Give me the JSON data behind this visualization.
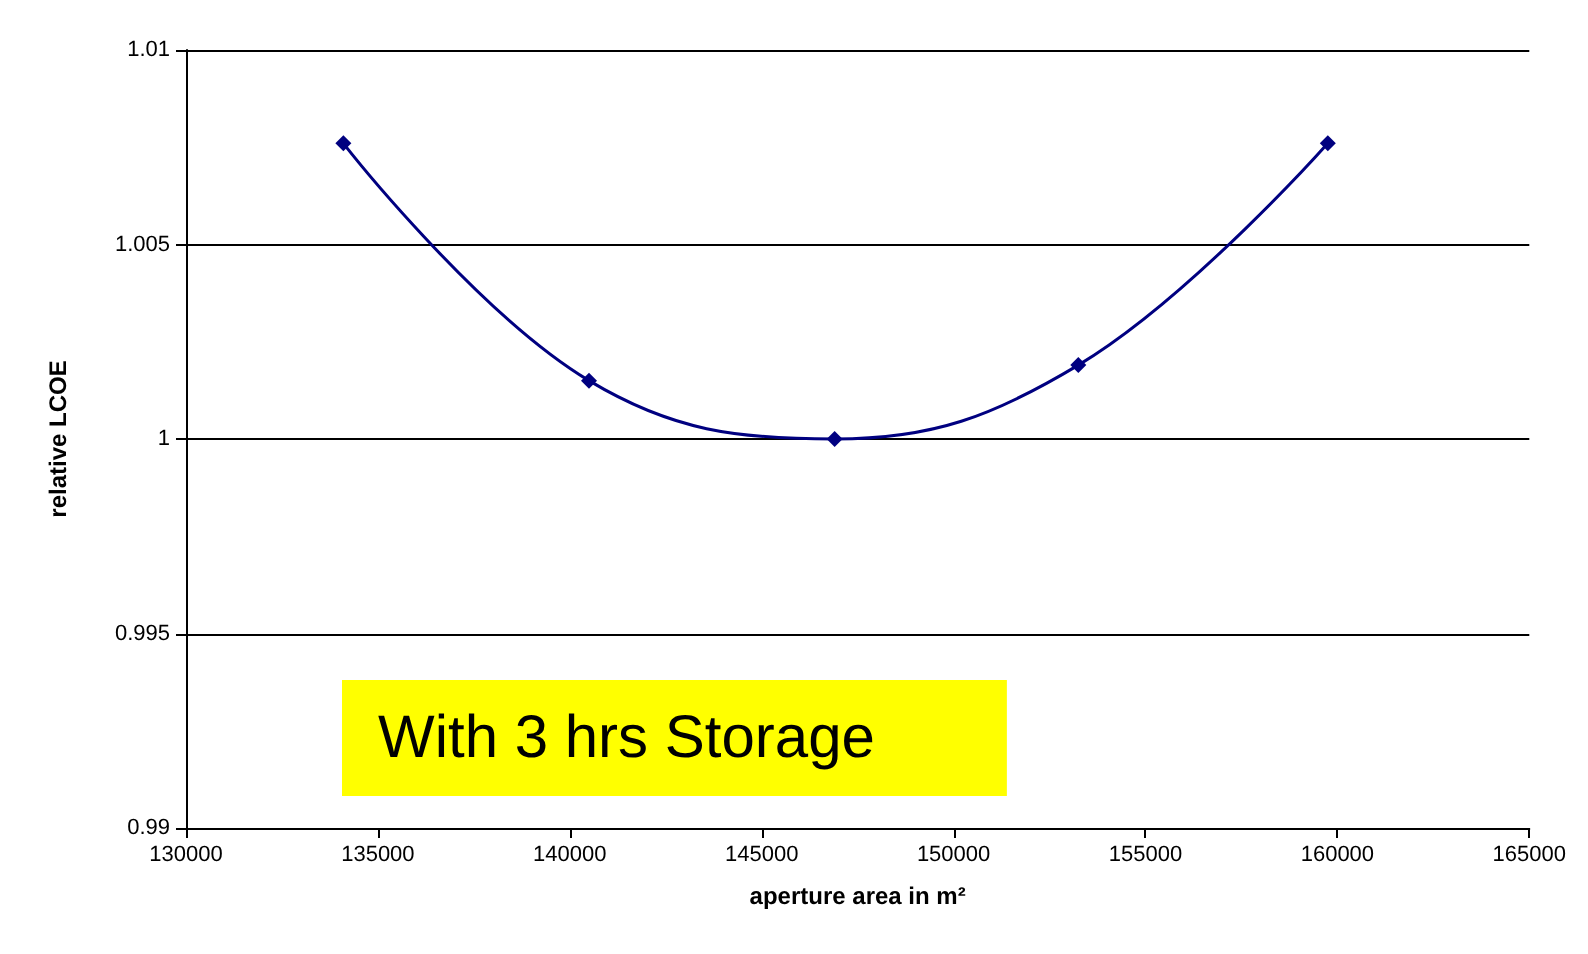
{
  "chart_data": {
    "type": "line",
    "xlabel": "aperture area in m²",
    "ylabel": "relative LCOE",
    "x": [
      134100,
      140500,
      146900,
      153250,
      159750
    ],
    "series": [
      {
        "color": "#000080",
        "values": [
          1.0076,
          1.0015,
          1.0,
          1.0019,
          1.0076
        ]
      }
    ],
    "xlim": [
      130000,
      165000
    ],
    "xticks": [
      130000,
      135000,
      140000,
      145000,
      150000,
      155000,
      160000,
      165000
    ],
    "ylim": [
      0.99,
      1.01
    ],
    "yticks": [
      0.99,
      0.995,
      1,
      1.005,
      1.01
    ],
    "grid": "y",
    "marker": "diamond",
    "line_style": "solid",
    "annotations": [
      "With 3 hrs Storage"
    ]
  }
}
